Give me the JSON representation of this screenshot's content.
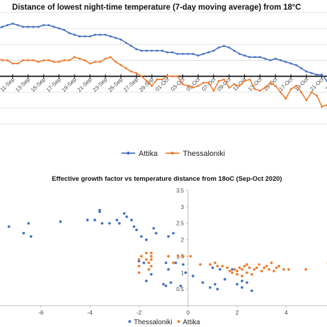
{
  "chart_data": [
    {
      "type": "line",
      "title": "Distance of lowest night-time temperature (7-day moving average) from 18°C",
      "x_tick_labels": [
        "09-Sep",
        "11-Sep",
        "13-Sep",
        "15-Sep",
        "17-Sep",
        "19-Sep",
        "21-Sep",
        "23-Sep",
        "25-Sep",
        "27-Sep",
        "29-Sep",
        "01-Oct",
        "03-Oct",
        "05-Oct",
        "07-Oct",
        "09-Oct",
        "11-Oct",
        "13-Oct",
        "15-Oct",
        "17-Oct",
        "19-Oct",
        "21-Oct",
        "23-Oct"
      ],
      "x_tick_labels_visible": [
        "9-Sep",
        "11-Sep",
        "13-Sep",
        "15-Sep",
        "17-Sep",
        "19-Sep",
        "21-Sep",
        "23-Sep",
        "25-Sep",
        "27-Sep",
        "29-Sep",
        "01-Oct",
        "03-Oct",
        "05-Oct",
        "07-Oct",
        "09-Oct",
        "11-Oct",
        "13-Oct",
        "15-Oct",
        "17-Oct",
        "19-Oct",
        "21-Oct",
        "23-Oct"
      ],
      "ylim": [
        -3,
        4
      ],
      "grid": true,
      "legend_position": "bottom",
      "series": [
        {
          "name": "Attika",
          "color": "#4472C4",
          "values": [
            3.0,
            3.1,
            3.2,
            3.3,
            3.2,
            3.1,
            3.1,
            3.1,
            3.1,
            3.2,
            3.2,
            3.1,
            3.0,
            2.9,
            2.7,
            2.6,
            2.5,
            2.5,
            2.5,
            2.6,
            2.6,
            2.6,
            2.5,
            2.4,
            2.3,
            2.1,
            1.9,
            1.7,
            1.6,
            1.6,
            1.6,
            1.6,
            1.6,
            1.5,
            1.5,
            1.4,
            1.4,
            1.4,
            1.4,
            1.3,
            1.4,
            1.5,
            1.6,
            1.8,
            1.9,
            1.8,
            1.6,
            1.4,
            1.3,
            1.2,
            1.2,
            1.2,
            1.1,
            1.0,
            1.1,
            1.0,
            0.9,
            0.8,
            0.7,
            0.5,
            0.3,
            0.2,
            0.1,
            0.1,
            -0.3
          ]
        },
        {
          "name": "Thessaloniki",
          "color": "#ED7D31",
          "values": [
            1.1,
            1.0,
            1.0,
            0.8,
            0.8,
            1.0,
            1.0,
            1.0,
            0.9,
            1.0,
            1.0,
            0.9,
            0.9,
            1.0,
            1.0,
            1.2,
            1.1,
            1.0,
            0.8,
            0.9,
            0.9,
            1.1,
            1.2,
            0.9,
            0.7,
            0.5,
            0.3,
            0.2,
            0.0,
            -0.3,
            -0.6,
            -0.2,
            -0.2,
            0.0,
            0.0,
            0.0,
            -0.5,
            -0.6,
            -0.7,
            -0.6,
            -0.4,
            -0.4,
            -0.9,
            -0.3,
            -0.2,
            -0.7,
            -0.5,
            -0.6,
            -0.3,
            -0.2,
            -0.8,
            -0.9,
            -0.7,
            -0.4,
            -0.6,
            -1.0,
            -1.4,
            -0.8,
            -0.6,
            -1.0,
            -1.5,
            -1.0,
            -1.2,
            -1.9,
            -1.8
          ]
        }
      ]
    },
    {
      "type": "scatter",
      "title": "Effective growth factor vs temperature distance from 18oC (Sep-Oct 2020)",
      "xlim": [
        -8,
        6
      ],
      "ylim": [
        0,
        3.5
      ],
      "x_tick_labels": [
        "-6",
        "-4",
        "-2",
        "0",
        "2",
        "4"
      ],
      "y_tick_labels": [
        "0",
        "0.5",
        "1",
        "1.5",
        "2",
        "2.5",
        "3",
        "3.5"
      ],
      "grid": false,
      "legend_position": "bottom",
      "series": [
        {
          "name": "Thessaloniki",
          "color": "#4472C4",
          "points": [
            [
              -7.8,
              2.2
            ],
            [
              -7.3,
              2.4
            ],
            [
              -6.7,
              2.2
            ],
            [
              -6.5,
              2.5
            ],
            [
              -6.4,
              2.1
            ],
            [
              -5.2,
              2.55
            ],
            [
              -4.1,
              2.6
            ],
            [
              -3.8,
              2.6
            ],
            [
              -3.6,
              2.9
            ],
            [
              -3.6,
              2.85
            ],
            [
              -3.5,
              2.5
            ],
            [
              -3.2,
              2.5
            ],
            [
              -2.9,
              2.6
            ],
            [
              -2.8,
              2.5
            ],
            [
              -2.6,
              2.8
            ],
            [
              -2.5,
              2.7
            ],
            [
              -2.3,
              2.6
            ],
            [
              -2.2,
              2.4
            ],
            [
              -2.1,
              2.3
            ],
            [
              -2.0,
              1.35
            ],
            [
              -1.9,
              2.1
            ],
            [
              -1.8,
              1.3
            ],
            [
              -1.7,
              2.0
            ],
            [
              -1.7,
              0.75
            ],
            [
              -1.5,
              0.95
            ],
            [
              -1.4,
              2.35
            ],
            [
              -1.3,
              2.2
            ],
            [
              -1.0,
              0.65
            ],
            [
              -0.9,
              1.3
            ],
            [
              -0.9,
              0.6
            ],
            [
              -0.8,
              2.1
            ],
            [
              -0.8,
              1.1
            ],
            [
              -0.7,
              0.7
            ],
            [
              -0.6,
              2.2
            ],
            [
              -0.5,
              1.3
            ],
            [
              -0.3,
              0.6
            ],
            [
              -0.2,
              1.25
            ],
            [
              -0.1,
              1.0
            ],
            [
              0.2,
              0.9
            ],
            [
              0.6,
              0.7
            ],
            [
              0.9,
              0.55
            ],
            [
              1.0,
              1.15
            ],
            [
              1.1,
              0.65
            ],
            [
              1.2,
              0.5
            ],
            [
              1.3,
              1.1
            ],
            [
              1.5,
              0.8
            ],
            [
              1.8,
              1.1
            ],
            [
              2.0,
              0.65
            ],
            [
              2.2,
              0.55
            ],
            [
              2.2,
              0.75
            ],
            [
              2.4,
              0.7
            ],
            [
              2.6,
              0.45
            ]
          ]
        },
        {
          "name": "Attika",
          "color": "#ED7D31",
          "points": [
            [
              -2.0,
              1.4
            ],
            [
              -2.0,
              1.2
            ],
            [
              -2.0,
              1.0
            ],
            [
              -1.9,
              1.5
            ],
            [
              -1.7,
              1.6
            ],
            [
              -1.7,
              1.4
            ],
            [
              -1.6,
              1.3
            ],
            [
              -1.6,
              1.1
            ],
            [
              -1.5,
              1.6
            ],
            [
              -1.5,
              1.5
            ],
            [
              -1.5,
              1.4
            ],
            [
              -1.5,
              1.2
            ],
            [
              -0.8,
              1.5
            ],
            [
              -0.6,
              1.3
            ],
            [
              -0.4,
              1.5
            ],
            [
              -0.2,
              1.5
            ],
            [
              0.1,
              1.5
            ],
            [
              0.5,
              1.25
            ],
            [
              0.9,
              1.25
            ],
            [
              1.1,
              1.3
            ],
            [
              1.2,
              1.2
            ],
            [
              1.4,
              1.2
            ],
            [
              1.6,
              1.15
            ],
            [
              1.7,
              1.05
            ],
            [
              1.8,
              1.0
            ],
            [
              1.9,
              1.1
            ],
            [
              2.0,
              0.95
            ],
            [
              2.0,
              1.05
            ],
            [
              2.1,
              1.15
            ],
            [
              2.2,
              0.9
            ],
            [
              2.2,
              1.1
            ],
            [
              2.3,
              1.2
            ],
            [
              2.4,
              1.0
            ],
            [
              2.4,
              1.25
            ],
            [
              2.5,
              1.15
            ],
            [
              2.6,
              0.95
            ],
            [
              2.7,
              1.1
            ],
            [
              2.8,
              1.15
            ],
            [
              2.9,
              1.25
            ],
            [
              3.0,
              1.05
            ],
            [
              3.1,
              1.15
            ],
            [
              3.2,
              1.2
            ],
            [
              3.3,
              1.1
            ],
            [
              3.4,
              1.3
            ],
            [
              3.5,
              1.05
            ],
            [
              3.6,
              1.15
            ],
            [
              3.7,
              1.2
            ],
            [
              3.9,
              1.1
            ],
            [
              4.1,
              1.1
            ],
            [
              4.8,
              1.1
            ],
            [
              5.7,
              1.3
            ],
            [
              5.8,
              1.1
            ]
          ]
        }
      ]
    }
  ]
}
